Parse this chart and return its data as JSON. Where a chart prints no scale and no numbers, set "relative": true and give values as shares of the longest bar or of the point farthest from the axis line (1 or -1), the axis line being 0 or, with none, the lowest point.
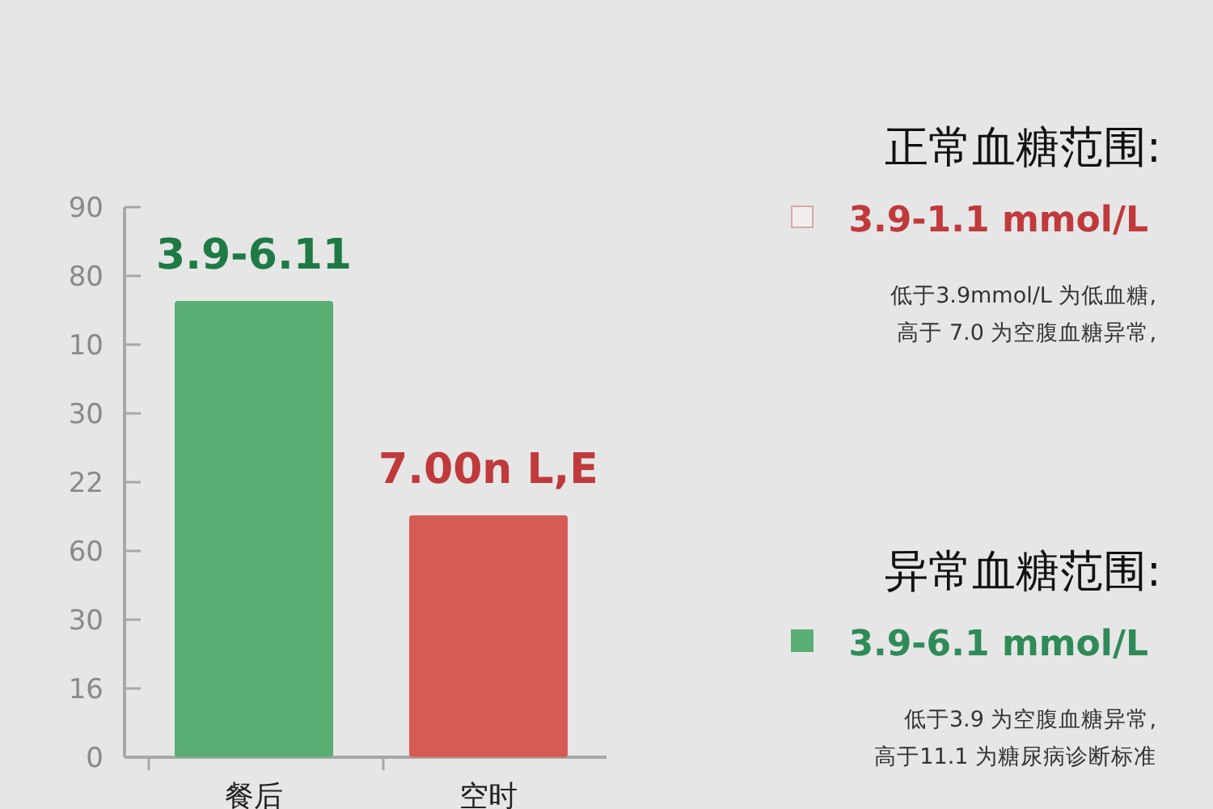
{
  "chart_data": [
    {
      "type": "bar",
      "relative": true,
      "categories": [
        "餐后",
        "空时"
      ],
      "values": [
        1,
        0.53
      ],
      "colors": [
        "#5aae74",
        "#d65b55"
      ],
      "annotations": [
        {
          "text": "3.9-6.11",
          "x": "餐后",
          "y": 1
        },
        {
          "text": "7.00n L,E",
          "x": "空时",
          "y": 0.53
        },
        "0",
        "16",
        "30",
        "60",
        "22",
        "30",
        "10",
        "80",
        "90"
      ]
    },
    {
      "type": "other",
      "title": "正常血糖范围:",
      "subtitle": "3.9-1.1 mmol/L",
      "color": "#c0393b",
      "colors": [
        "#f3eeee"
      ],
      "annotations": [
        "低于3.9mmol/L 为低血糖,",
        "高于 7.0  为空腹血糖异常,"
      ]
    },
    {
      "type": "other",
      "title": "异常血糖范围:",
      "subtitle": "3.9-6.1 mmol/L",
      "color": "#2e8b57",
      "colors": [
        "#5aae74"
      ],
      "annotations": [
        "低于3.9  为空腹血糖异常,",
        "高于11.1 为糖尿病诊断标准"
      ]
    }
  ]
}
